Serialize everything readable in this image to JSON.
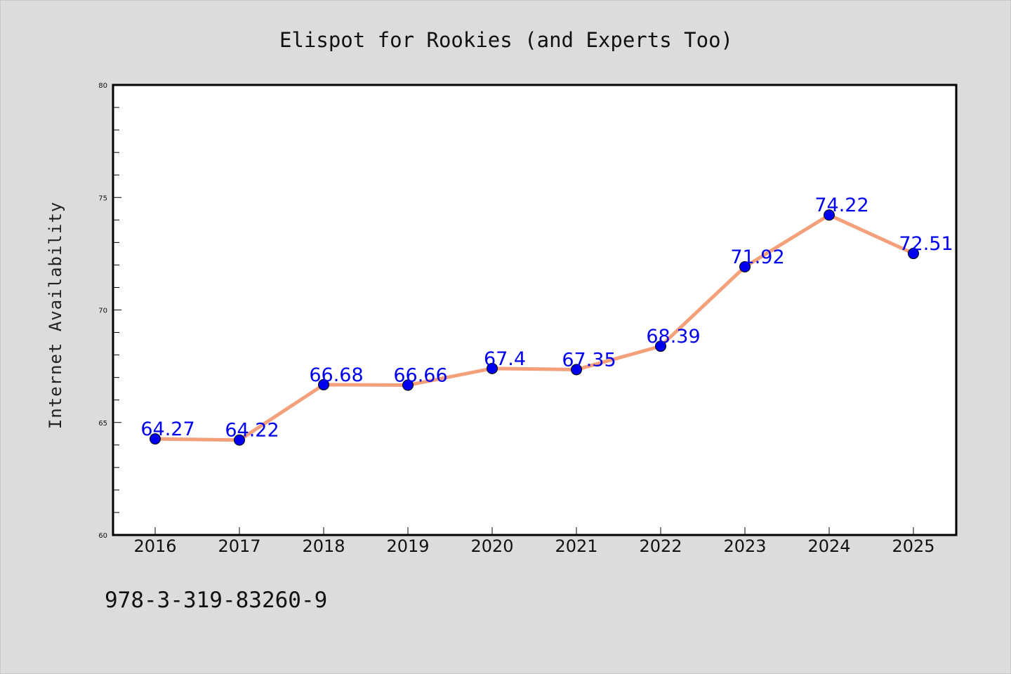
{
  "chart_data": {
    "type": "line",
    "title": "Elispot for Rookies (and Experts Too)",
    "xlabel": "",
    "ylabel": "Internet Availability",
    "categories": [
      "2016",
      "2017",
      "2018",
      "2019",
      "2020",
      "2021",
      "2022",
      "2023",
      "2024",
      "2025"
    ],
    "series": [
      {
        "values": [
          64.27,
          64.22,
          66.68,
          66.66,
          67.4,
          67.35,
          68.39,
          71.92,
          74.22,
          72.51
        ],
        "data_labels": [
          "64.27",
          "64.22",
          "66.68",
          "66.66",
          "67.4",
          "67.35",
          "68.39",
          "71.92",
          "74.22",
          "72.51"
        ],
        "line_color": "#f4a07a",
        "marker_color": "#0000ee"
      }
    ],
    "ylim": [
      60,
      80
    ],
    "yticks": [
      "60",
      "65",
      "70",
      "75",
      "80"
    ],
    "grid": false,
    "legend": "none"
  },
  "footer": {
    "isbn": "978-3-319-83260-9"
  },
  "colors": {
    "background": "#dcdcdc",
    "plot_background": "#ffffff",
    "line": "#f4a07a",
    "marker": "#0000ee",
    "label": "#0000ee"
  }
}
